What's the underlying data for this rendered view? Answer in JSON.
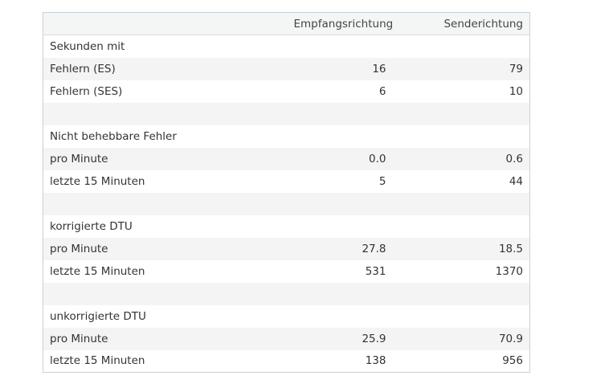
{
  "table": {
    "headers": {
      "label": "",
      "rx": "Empfangsrichtung",
      "tx": "Senderichtung"
    },
    "rows": [
      {
        "label": "Sekunden mit",
        "rx": "",
        "tx": ""
      },
      {
        "label": "Fehlern (ES)",
        "rx": "16",
        "tx": "79"
      },
      {
        "label": "Fehlern (SES)",
        "rx": "6",
        "tx": "10"
      },
      {
        "label": "",
        "rx": "",
        "tx": ""
      },
      {
        "label": "Nicht behebbare Fehler",
        "rx": "",
        "tx": ""
      },
      {
        "label": "pro Minute",
        "rx": "0.0",
        "tx": "0.6"
      },
      {
        "label": "letzte 15 Minuten",
        "rx": "5",
        "tx": "44"
      },
      {
        "label": "",
        "rx": "",
        "tx": ""
      },
      {
        "label": "korrigierte DTU",
        "rx": "",
        "tx": ""
      },
      {
        "label": "pro Minute",
        "rx": "27.8",
        "tx": "18.5"
      },
      {
        "label": "letzte 15 Minuten",
        "rx": "531",
        "tx": "1370"
      },
      {
        "label": "",
        "rx": "",
        "tx": ""
      },
      {
        "label": "unkorrigierte DTU",
        "rx": "",
        "tx": ""
      },
      {
        "label": "pro Minute",
        "rx": "25.9",
        "tx": "70.9"
      },
      {
        "label": "letzte 15 Minuten",
        "rx": "138",
        "tx": "956"
      }
    ]
  }
}
